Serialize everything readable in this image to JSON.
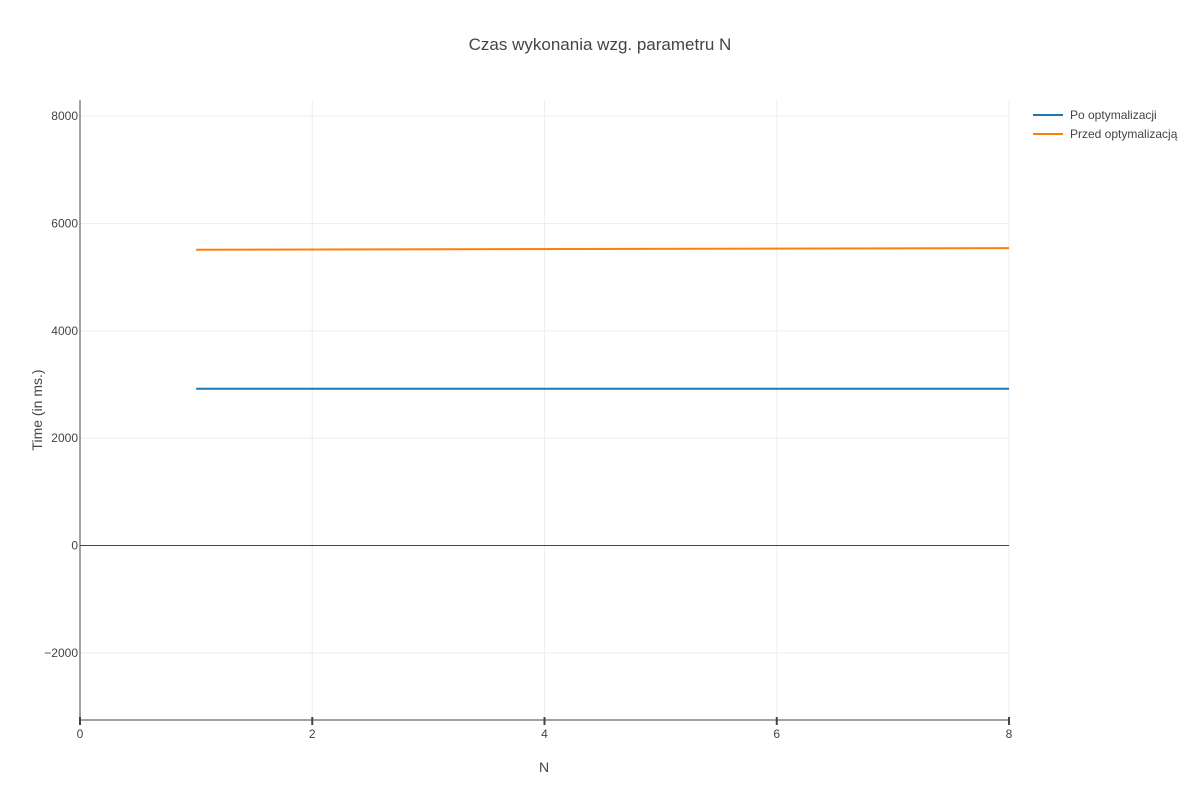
{
  "chart_data": {
    "type": "line",
    "title": "Czas wykonania wzg. parametru N",
    "xlabel": "N",
    "ylabel": "Time (in ms.)",
    "xlim": [
      0,
      8
    ],
    "ylim": [
      -3250,
      8300
    ],
    "x_ticks": [
      0,
      2,
      4,
      6,
      8
    ],
    "x_tick_labels": [
      "0",
      "2",
      "4",
      "6",
      "8"
    ],
    "y_ticks": [
      -2000,
      0,
      2000,
      4000,
      6000,
      8000
    ],
    "y_tick_labels": [
      "−2000",
      "0",
      "2000",
      "4000",
      "6000",
      "8000"
    ],
    "grid": true,
    "legend_position": "top-right",
    "series": [
      {
        "name": "Po optymalizacji",
        "color": "#1f77b4",
        "x": [
          1,
          8
        ],
        "y": [
          2920,
          2920
        ]
      },
      {
        "name": "Przed optymalizacją",
        "color": "#ff7f0e",
        "x": [
          1,
          8
        ],
        "y": [
          5510,
          5540
        ]
      }
    ]
  }
}
